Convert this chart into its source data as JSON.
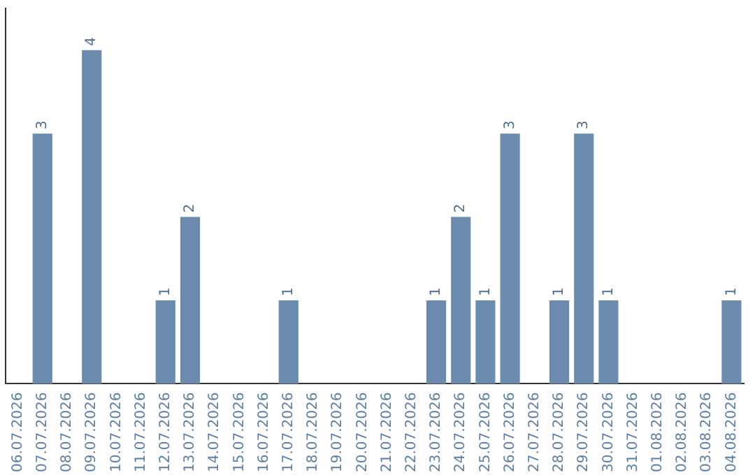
{
  "chart_data": {
    "type": "bar",
    "categories": [
      "06.07.2026",
      "07.07.2026",
      "08.07.2026",
      "09.07.2026",
      "10.07.2026",
      "11.07.2026",
      "12.07.2026",
      "13.07.2026",
      "14.07.2026",
      "15.07.2026",
      "16.07.2026",
      "17.07.2026",
      "18.07.2026",
      "19.07.2026",
      "20.07.2026",
      "21.07.2026",
      "22.07.2026",
      "23.07.2026",
      "24.07.2026",
      "25.07.2026",
      "26.07.2026",
      "27.07.2026",
      "28.07.2026",
      "29.07.2026",
      "30.07.2026",
      "31.07.2026",
      "01.08.2026",
      "02.08.2026",
      "03.08.2026",
      "04.08.2026"
    ],
    "values": [
      0,
      3,
      0,
      4,
      0,
      0,
      1,
      2,
      0,
      0,
      0,
      1,
      0,
      0,
      0,
      0,
      0,
      1,
      2,
      1,
      3,
      0,
      1,
      3,
      1,
      0,
      0,
      0,
      0,
      1
    ],
    "value_labels": [
      null,
      "3",
      null,
      "4",
      null,
      null,
      "1",
      "2",
      null,
      null,
      null,
      "1",
      null,
      null,
      null,
      null,
      null,
      "1",
      "2",
      "1",
      "3",
      null,
      "1",
      "3",
      "1",
      null,
      null,
      null,
      null,
      "1"
    ],
    "color": "#6b8cae",
    "grid": false,
    "legend": false,
    "tick_labels": "x"
  }
}
